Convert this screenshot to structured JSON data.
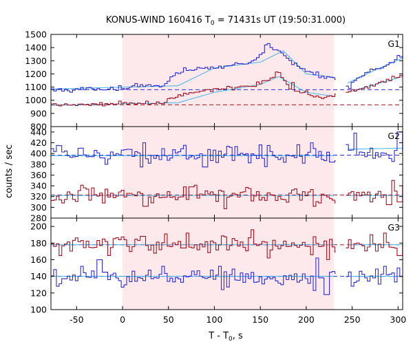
{
  "chart_data": {
    "type": "line",
    "title": {
      "main": "KONUS-WIND 160416 T",
      "sub": "0",
      "rest": " = 71431s UT (19:50:31.000)"
    },
    "xlabel": {
      "main": "T - T",
      "sub": "0",
      "rest": ", s"
    },
    "ylabel": "counts / sec",
    "xlim": [
      -78,
      305
    ],
    "xticks": [
      -50,
      0,
      50,
      100,
      150,
      200,
      250,
      300
    ],
    "shaded_interval": {
      "x": [
        0,
        230
      ],
      "color": "#fde8ec"
    },
    "colors": {
      "blue": "#2b2bd1",
      "red": "#a50f1e",
      "fit": "#3fb5e8"
    },
    "panels": [
      {
        "label": "G1",
        "ylim": [
          800,
          1500
        ],
        "yticks": [
          800,
          900,
          1000,
          1100,
          1200,
          1300,
          1400,
          1500
        ],
        "series": [
          {
            "color": "blue",
            "background": 1080,
            "keypoints": [
              [
                -78,
                1075
              ],
              [
                -20,
                1090
              ],
              [
                45,
                1110
              ],
              [
                55,
                1190
              ],
              [
                70,
                1230
              ],
              [
                100,
                1250
              ],
              [
                140,
                1285
              ],
              [
                150,
                1340
              ],
              [
                160,
                1390
              ],
              [
                175,
                1365
              ],
              [
                185,
                1280
              ],
              [
                210,
                1190
              ],
              [
                230,
                1175
              ],
              [
                245,
                1110
              ],
              [
                260,
                1190
              ],
              [
                285,
                1250
              ],
              [
                305,
                1330
              ]
            ],
            "spikes": [
              [
                160,
                1430
              ],
              [
                157,
                1420
              ],
              [
                196,
                1240
              ],
              [
                213,
                1215
              ],
              [
                248,
                1090
              ],
              [
                300,
                1340
              ]
            ]
          },
          {
            "color": "red",
            "background": 965,
            "keypoints": [
              [
                -78,
                960
              ],
              [
                -20,
                970
              ],
              [
                45,
                980
              ],
              [
                55,
                1020
              ],
              [
                70,
                1050
              ],
              [
                110,
                1090
              ],
              [
                140,
                1110
              ],
              [
                150,
                1130
              ],
              [
                165,
                1185
              ],
              [
                175,
                1170
              ],
              [
                185,
                1080
              ],
              [
                200,
                1040
              ],
              [
                215,
                1025
              ],
              [
                230,
                1030
              ],
              [
                245,
                1060
              ],
              [
                270,
                1110
              ],
              [
                290,
                1150
              ],
              [
                305,
                1190
              ]
            ],
            "spikes": [
              [
                167,
                1215
              ],
              [
                172,
                1210
              ],
              [
                186,
                1135
              ],
              [
                200,
                1070
              ]
            ]
          }
        ],
        "fits": [
          {
            "x": [
              -78,
              60,
              100,
              150,
              175,
              200,
              230
            ],
            "y": [
              1085,
              1110,
              1245,
              1290,
              1375,
              1200,
              1175
            ]
          },
          {
            "x": [
              245,
              275,
              305
            ],
            "y": [
              1130,
              1230,
              1320
            ]
          },
          {
            "x": [
              -78,
              60,
              100,
              150,
              170,
              200,
              230
            ],
            "y": [
              962,
              980,
              1060,
              1120,
              1180,
              1060,
              1030
            ]
          },
          {
            "x": [
              245,
              275,
              305
            ],
            "y": [
              1060,
              1120,
              1180
            ]
          }
        ]
      },
      {
        "label": "G2",
        "ylim": [
          280,
          450
        ],
        "yticks": [
          280,
          300,
          320,
          340,
          360,
          380,
          400,
          420,
          440
        ],
        "series": [
          {
            "color": "blue",
            "background": 397,
            "keypoints": [
              [
                -78,
                398
              ],
              [
                0,
                397
              ],
              [
                100,
                398
              ],
              [
                200,
                396
              ],
              [
                230,
                394
              ],
              [
                245,
                400
              ],
              [
                305,
                405
              ]
            ],
            "spikes": [
              [
                -70,
                415
              ],
              [
                -45,
                410
              ],
              [
                -18,
                380
              ],
              [
                20,
                375
              ],
              [
                23,
                420
              ],
              [
                90,
                375
              ],
              [
                150,
                416
              ],
              [
                160,
                415
              ],
              [
                205,
                420
              ],
              [
                228,
                384
              ],
              [
                253,
                438
              ],
              [
                270,
                410
              ],
              [
                302,
                440
              ]
            ]
          },
          {
            "color": "red",
            "background": 323,
            "keypoints": [
              [
                -78,
                323
              ],
              [
                0,
                322
              ],
              [
                100,
                323
              ],
              [
                200,
                321
              ],
              [
                230,
                320
              ],
              [
                245,
                322
              ],
              [
                305,
                325
              ]
            ],
            "spikes": [
              [
                -65,
                308
              ],
              [
                -20,
                308
              ],
              [
                23,
                348
              ],
              [
                25,
                302
              ],
              [
                75,
                338
              ],
              [
                135,
                337
              ],
              [
                210,
                302
              ],
              [
                270,
                340
              ],
              [
                272,
                310
              ],
              [
                290,
                305
              ],
              [
                295,
                350
              ],
              [
                302,
                310
              ]
            ]
          }
        ],
        "fits": [
          {
            "x": [
              -78,
              230
            ],
            "y": [
              396,
              396
            ]
          },
          {
            "x": [
              245,
              305
            ],
            "y": [
              408,
              410
            ]
          },
          {
            "x": [
              -78,
              230
            ],
            "y": [
              322,
              322
            ]
          },
          {
            "x": [
              245,
              305
            ],
            "y": [
              322,
              322
            ]
          }
        ]
      },
      {
        "label": "G3",
        "ylim": [
          100,
          210
        ],
        "yticks": [
          100,
          120,
          140,
          160,
          180,
          200
        ],
        "series": [
          {
            "color": "red",
            "background": 178,
            "keypoints": [
              [
                -78,
                179
              ],
              [
                0,
                178
              ],
              [
                100,
                179
              ],
              [
                200,
                177
              ],
              [
                230,
                176
              ],
              [
                245,
                178
              ],
              [
                305,
                177
              ]
            ],
            "spikes": [
              [
                -68,
                165
              ],
              [
                -15,
                165
              ],
              [
                22,
                188
              ],
              [
                70,
                192
              ],
              [
                142,
                196
              ],
              [
                160,
                162
              ],
              [
                205,
                166
              ],
              [
                225,
                160
              ],
              [
                270,
                190
              ],
              [
                285,
                192
              ],
              [
                302,
                165
              ]
            ]
          },
          {
            "color": "blue",
            "background": 140,
            "keypoints": [
              [
                -78,
                140
              ],
              [
                0,
                139
              ],
              [
                100,
                140
              ],
              [
                200,
                139
              ],
              [
                230,
                139
              ],
              [
                245,
                140
              ],
              [
                305,
                141
              ]
            ],
            "spikes": [
              [
                -70,
                128
              ],
              [
                -45,
                152
              ],
              [
                -25,
                160
              ],
              [
                0,
                127
              ],
              [
                45,
                152
              ],
              [
                105,
                152
              ],
              [
                110,
                124
              ],
              [
                210,
                123
              ],
              [
                213,
                162
              ],
              [
                220,
                118
              ],
              [
                225,
                118
              ],
              [
                250,
                128
              ],
              [
                285,
                152
              ],
              [
                300,
                150
              ]
            ]
          }
        ],
        "fits": [
          {
            "x": [
              -78,
              230
            ],
            "y": [
              178,
              178
            ]
          },
          {
            "x": [
              245,
              305
            ],
            "y": [
              178,
              178
            ]
          },
          {
            "x": [
              -78,
              230
            ],
            "y": [
              140,
              140
            ]
          },
          {
            "x": [
              245,
              305
            ],
            "y": [
              140,
              140
            ]
          }
        ]
      }
    ]
  }
}
